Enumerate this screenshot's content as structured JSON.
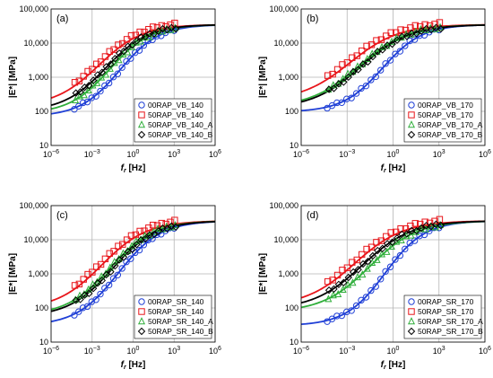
{
  "colors": {
    "series0": "#1f3fd6",
    "series1": "#e8161b",
    "series2": "#2fae3a",
    "series3": "#000000",
    "grid": "#b5b5b5",
    "frame": "#000000"
  },
  "chart_data": [
    {
      "type": "scatter",
      "panel_label": "(a)",
      "xlabel_main": "f",
      "xlabel_sub": "r",
      "xlabel_unit": " [Hz]",
      "ylabel": "|E*| [MPa]",
      "xlim": [
        1e-06,
        1000000.0
      ],
      "ylim": [
        10,
        100000
      ],
      "xscale": "log",
      "yscale": "log",
      "grid": true,
      "legend_position": "bottom-right",
      "x_ticks": [
        {
          "v": 1e-06,
          "base": "10",
          "exp": "−6"
        },
        {
          "v": 0.001,
          "base": "10",
          "exp": "−3"
        },
        {
          "v": 1,
          "base": "10",
          "exp": "0"
        },
        {
          "v": 1000,
          "base": "10",
          "exp": "3"
        },
        {
          "v": 1000000.0,
          "base": "10",
          "exp": "6"
        }
      ],
      "y_ticks": [
        {
          "v": 10,
          "label": "10"
        },
        {
          "v": 100,
          "label": "100"
        },
        {
          "v": 1000,
          "label": "1,000"
        },
        {
          "v": 10000,
          "label": "10,000"
        },
        {
          "v": 100000,
          "label": "100,000"
        }
      ],
      "series": [
        {
          "name": "00RAP_VB_140",
          "marker": "circle",
          "color": "#1f3fd6",
          "fit": {
            "min": 70,
            "max": 35000,
            "x0": 0.1,
            "w": 1.45
          },
          "range": [
            5e-05,
            1000
          ]
        },
        {
          "name": "50RAP_VB_140",
          "marker": "square",
          "color": "#e8161b",
          "fit": {
            "min": 140,
            "max": 35000,
            "x0": 0.003,
            "w": 1.6
          },
          "range": [
            5e-05,
            1000
          ]
        },
        {
          "name": "50RAP_VB_140_A",
          "marker": "triangle",
          "color": "#2fae3a",
          "fit": {
            "min": 85,
            "max": 35000,
            "x0": 0.02,
            "w": 1.5
          },
          "range": [
            5e-05,
            1000
          ]
        },
        {
          "name": "50RAP_VB_140_B",
          "marker": "diamond",
          "color": "#000000",
          "fit": {
            "min": 100,
            "max": 35000,
            "x0": 0.01,
            "w": 1.55
          },
          "range": [
            5e-05,
            1000
          ]
        }
      ]
    },
    {
      "type": "scatter",
      "panel_label": "(b)",
      "xlabel_main": "f",
      "xlabel_sub": "r",
      "xlabel_unit": " [Hz]",
      "ylabel": "|E*| [MPa]",
      "xlim": [
        1e-06,
        1000000.0
      ],
      "ylim": [
        10,
        100000
      ],
      "xscale": "log",
      "yscale": "log",
      "grid": true,
      "legend_position": "bottom-right",
      "x_ticks": [
        {
          "v": 1e-06,
          "base": "10",
          "exp": "−6"
        },
        {
          "v": 0.001,
          "base": "10",
          "exp": "−3"
        },
        {
          "v": 1,
          "base": "10",
          "exp": "0"
        },
        {
          "v": 1000,
          "base": "10",
          "exp": "3"
        },
        {
          "v": 1000000.0,
          "base": "10",
          "exp": "6"
        }
      ],
      "y_ticks": [
        {
          "v": 10,
          "label": "10"
        },
        {
          "v": 100,
          "label": "100"
        },
        {
          "v": 1000,
          "label": "1,000"
        },
        {
          "v": 10000,
          "label": "10,000"
        },
        {
          "v": 100000,
          "label": "100,000"
        }
      ],
      "series": [
        {
          "name": "00RAP_VB_170",
          "marker": "circle",
          "color": "#1f3fd6",
          "fit": {
            "min": 95,
            "max": 35000,
            "x0": 0.2,
            "w": 1.3
          },
          "range": [
            5e-05,
            1000
          ]
        },
        {
          "name": "50RAP_VB_170",
          "marker": "square",
          "color": "#e8161b",
          "fit": {
            "min": 200,
            "max": 35000,
            "x0": 0.0015,
            "w": 1.6
          },
          "range": [
            5e-05,
            1000
          ]
        },
        {
          "name": "50RAP_VB_170_A",
          "marker": "triangle",
          "color": "#2fae3a",
          "fit": {
            "min": 130,
            "max": 35000,
            "x0": 0.006,
            "w": 1.6
          },
          "range": [
            5e-05,
            1000
          ]
        },
        {
          "name": "50RAP_VB_170_B",
          "marker": "diamond",
          "color": "#000000",
          "fit": {
            "min": 120,
            "max": 35000,
            "x0": 0.008,
            "w": 1.6
          },
          "range": [
            5e-05,
            1000
          ]
        }
      ]
    },
    {
      "type": "scatter",
      "panel_label": "(c)",
      "xlabel_main": "f",
      "xlabel_sub": "r",
      "xlabel_unit": " [Hz]",
      "ylabel": "|E*| [MPa]",
      "xlim": [
        1e-06,
        1000000.0
      ],
      "ylim": [
        10,
        100000
      ],
      "xscale": "log",
      "yscale": "log",
      "grid": true,
      "legend_position": "bottom-right",
      "x_ticks": [
        {
          "v": 1e-06,
          "base": "10",
          "exp": "−6"
        },
        {
          "v": 0.001,
          "base": "10",
          "exp": "−3"
        },
        {
          "v": 1,
          "base": "10",
          "exp": "0"
        },
        {
          "v": 1000,
          "base": "10",
          "exp": "3"
        },
        {
          "v": 1000000.0,
          "base": "10",
          "exp": "6"
        }
      ],
      "y_ticks": [
        {
          "v": 10,
          "label": "10"
        },
        {
          "v": 100,
          "label": "100"
        },
        {
          "v": 1000,
          "label": "1,000"
        },
        {
          "v": 10000,
          "label": "10,000"
        },
        {
          "v": 100000,
          "label": "100,000"
        }
      ],
      "series": [
        {
          "name": "00RAP_SR_140",
          "marker": "circle",
          "color": "#1f3fd6",
          "fit": {
            "min": 30,
            "max": 36000,
            "x0": 0.08,
            "w": 1.55
          },
          "range": [
            5e-05,
            1000
          ]
        },
        {
          "name": "50RAP_SR_140",
          "marker": "square",
          "color": "#e8161b",
          "fit": {
            "min": 90,
            "max": 36000,
            "x0": 0.005,
            "w": 1.65
          },
          "range": [
            5e-05,
            1000
          ]
        },
        {
          "name": "50RAP_SR_140_A",
          "marker": "triangle",
          "color": "#2fae3a",
          "fit": {
            "min": 60,
            "max": 36000,
            "x0": 0.02,
            "w": 1.6
          },
          "range": [
            5e-05,
            1000
          ]
        },
        {
          "name": "50RAP_SR_140_B",
          "marker": "diamond",
          "color": "#000000",
          "fit": {
            "min": 55,
            "max": 36000,
            "x0": 0.03,
            "w": 1.6
          },
          "range": [
            5e-05,
            1000
          ]
        }
      ]
    },
    {
      "type": "scatter",
      "panel_label": "(d)",
      "xlabel_main": "f",
      "xlabel_sub": "r",
      "xlabel_unit": " [Hz]",
      "ylabel": "|E*| [MPa]",
      "xlim": [
        1e-06,
        1000000.0
      ],
      "ylim": [
        10,
        100000
      ],
      "xscale": "log",
      "yscale": "log",
      "grid": true,
      "legend_position": "bottom-right",
      "x_ticks": [
        {
          "v": 1e-06,
          "base": "10",
          "exp": "−6"
        },
        {
          "v": 0.001,
          "base": "10",
          "exp": "−3"
        },
        {
          "v": 1,
          "base": "10",
          "exp": "0"
        },
        {
          "v": 1000,
          "base": "10",
          "exp": "3"
        },
        {
          "v": 1000000.0,
          "base": "10",
          "exp": "6"
        }
      ],
      "y_ticks": [
        {
          "v": 10,
          "label": "10"
        },
        {
          "v": 100,
          "label": "100"
        },
        {
          "v": 1000,
          "label": "1,000"
        },
        {
          "v": 10000,
          "label": "10,000"
        },
        {
          "v": 100000,
          "label": "100,000"
        }
      ],
      "series": [
        {
          "name": "00RAP_SR_170",
          "marker": "circle",
          "color": "#1f3fd6",
          "fit": {
            "min": 30,
            "max": 36000,
            "x0": 0.3,
            "w": 1.3
          },
          "range": [
            5e-05,
            1000
          ]
        },
        {
          "name": "50RAP_SR_170",
          "marker": "square",
          "color": "#e8161b",
          "fit": {
            "min": 110,
            "max": 36000,
            "x0": 0.003,
            "w": 1.6
          },
          "range": [
            5e-05,
            1000
          ]
        },
        {
          "name": "50RAP_SR_170_A",
          "marker": "triangle",
          "color": "#2fae3a",
          "fit": {
            "min": 75,
            "max": 36000,
            "x0": 0.03,
            "w": 1.55
          },
          "range": [
            5e-05,
            1000
          ]
        },
        {
          "name": "50RAP_SR_170_B",
          "marker": "diamond",
          "color": "#000000",
          "fit": {
            "min": 90,
            "max": 36000,
            "x0": 0.01,
            "w": 1.6
          },
          "range": [
            5e-05,
            1000
          ]
        }
      ]
    }
  ]
}
